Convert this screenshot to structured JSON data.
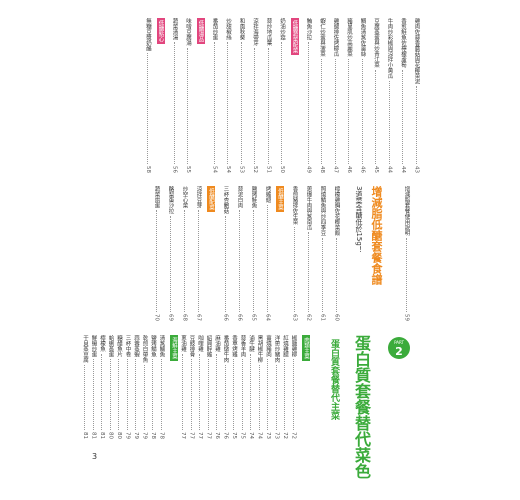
{
  "page_number": "3",
  "part": {
    "badge": "PART",
    "number": "2",
    "title": "蛋白質套餐替代菜色",
    "subtitle": "蛋白質套餐替代主菜"
  },
  "lowcarb": {
    "title": "增減脂低醣套餐食譜",
    "subtitle": "3道菜含醣低於15g！"
  },
  "rows": [
    {
      "entries": [
        {
          "title": "雞肉佐蒜香蘑菇與花椰菜泥",
          "page": "43"
        },
        {
          "title": "香煎鮭魚佐檸檬蘆筍",
          "page": "44"
        },
        {
          "title": "牛肉炒彩椒與涼拌小黃瓜",
          "page": "44"
        },
        {
          "title": "豆腐蒸蛋與炒青江菜",
          "page": "45"
        },
        {
          "title": "鯛魚清蒸佐薑絲",
          "page": "46"
        },
        {
          "title": "豬里肌炒高麗菜",
          "page": "46"
        },
        {
          "title": "雞腿排佐烤櫛瓜",
          "page": "47"
        },
        {
          "title": "蝦仁炒蛋與菠菜",
          "page": "48"
        },
        {
          "title": "鮪魚沙拉",
          "page": "49"
        },
        {
          "heading": "低醣蔬菜配菜"
        },
        {
          "title": "奶油炒菇",
          "page": "50"
        },
        {
          "title": "蒜炒地瓜葉",
          "page": "51"
        },
        {
          "title": "涼拌海帶芽",
          "page": "52"
        },
        {
          "title": "和風秋葵",
          "page": "53"
        },
        {
          "title": "炒甜椒絲",
          "page": "54"
        },
        {
          "title": "番茄炒蛋",
          "page": "54"
        },
        {
          "heading": "低醣湯品"
        },
        {
          "title": "味噌豆腐湯",
          "page": "55"
        },
        {
          "title": "蔬菜清湯",
          "page": "56"
        },
        {
          "heading": "低醣點心"
        },
        {
          "title": "無糖豆漿奶酪",
          "page": "58"
        }
      ]
    },
    {
      "entries": [
        {
          "title": "增減脂套餐使用說明",
          "page": "59"
        },
        {
          "lowcarb": true
        },
        {
          "title": "檸檬雞胸佐花椰菜飯",
          "page": "60"
        },
        {
          "title": "照燒鯖魚與炒四季豆",
          "page": "61"
        },
        {
          "title": "蔥爆牛肉與蒸南瓜",
          "page": "62"
        },
        {
          "title": "香煎豬排佐生菜",
          "page": "63"
        },
        {
          "heading": "低醣主菜"
        },
        {
          "title": "烤雞翅",
          "page": "64"
        },
        {
          "title": "鹽烤鮭魚",
          "page": "65"
        },
        {
          "title": "蒜泥白肉",
          "page": "66"
        },
        {
          "title": "三杯杏鮑菇",
          "page": "66"
        },
        {
          "heading": "低醣配菜"
        },
        {
          "title": "涼拌豆芽",
          "page": "67"
        },
        {
          "title": "炒空心菜",
          "page": "68"
        },
        {
          "title": "酪梨蛋沙拉",
          "page": "69"
        },
        {
          "title": "蔬菜烘蛋",
          "page": "70"
        }
      ]
    },
    {
      "entries": [
        {
          "part": true
        },
        {
          "heading": "肉類主菜"
        },
        {
          "title": "椒鹽雞柳",
          "page": "72"
        },
        {
          "title": "紅燒雞腿",
          "page": "72"
        },
        {
          "title": "洋蔥炒豬肉",
          "page": "73"
        },
        {
          "title": "薑燒豬肉",
          "page": "73"
        },
        {
          "title": "黑胡椒牛柳",
          "page": "74"
        },
        {
          "title": "滷牛腱",
          "page": "74"
        },
        {
          "title": "蒜香羊肉",
          "page": "75"
        },
        {
          "title": "香草烤雞",
          "page": "75"
        },
        {
          "title": "番茄燉牛肉",
          "page": "76"
        },
        {
          "title": "麻油雞",
          "page": "76"
        },
        {
          "title": "紹興醉雞",
          "page": "77"
        },
        {
          "title": "咖哩雞",
          "page": "77"
        },
        {
          "title": "豆豉排骨",
          "page": "77"
        },
        {
          "title": "蔥油雞",
          "page": "77"
        },
        {
          "heading": "海鮮主菜"
        },
        {
          "title": "清蒸鱸魚",
          "page": "78"
        },
        {
          "title": "鹽烤鯖魚",
          "page": "78"
        },
        {
          "title": "乾煎白帶魚",
          "page": "79"
        },
        {
          "title": "蒜蓉蒸蝦",
          "page": "79"
        },
        {
          "title": "三杯中卷",
          "page": "79"
        },
        {
          "title": "糖醋魚片",
          "page": "80"
        },
        {
          "title": "蛤蜊蒸蛋",
          "page": "80"
        },
        {
          "title": "檸檬魚",
          "page": "81"
        },
        {
          "title": "鮮蝦炒蛋",
          "page": "81"
        },
        {
          "title": "干貝蒸豆腐",
          "page": "81"
        }
      ]
    }
  ]
}
